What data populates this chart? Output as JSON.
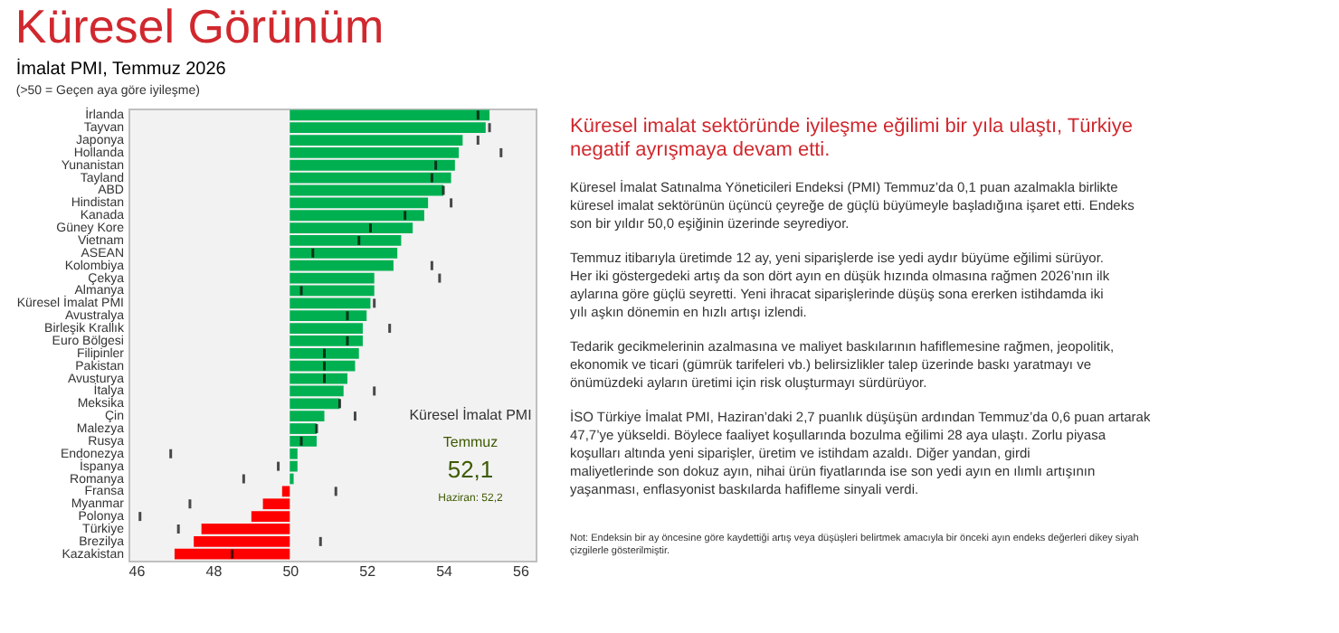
{
  "chart_data": {
    "type": "bar",
    "orientation": "horizontal",
    "title": "İmalat PMI, Temmuz 2026",
    "subtitle": "(>50  = Geçen aya göre iyileşme)",
    "categories": [
      "İrlanda",
      "Tayvan",
      "Japonya",
      "Hollanda",
      "Yunanistan",
      "Tayland",
      "ABD",
      "Hindistan",
      "Kanada",
      "Güney Kore",
      "Vietnam",
      "ASEAN",
      "Kolombiya",
      "Çekya",
      "Almanya",
      "Küresel İmalat PMI",
      "Avustralya",
      "Birleşik Krallık",
      "Euro Bölgesi",
      "Filipinler",
      "Pakistan",
      "Avusturya",
      "İtalya",
      "Meksika",
      "Çin",
      "Malezya",
      "Rusya",
      "Endonezya",
      "İspanya",
      "Romanya",
      "Fransa",
      "Myanmar",
      "Polonya",
      "Türkiye",
      "Brezilya",
      "Kazakistan"
    ],
    "series": [
      {
        "type": "bar",
        "base": [
          50,
          50,
          50,
          50,
          50,
          50,
          50,
          50,
          50,
          50,
          50,
          50,
          50,
          50,
          50,
          50,
          50,
          50,
          50,
          50,
          50,
          50,
          50,
          50,
          50,
          50,
          50,
          50,
          50,
          50,
          50,
          50,
          50,
          50,
          50,
          50
        ],
        "values": [
          5.2,
          5.1,
          4.5,
          4.4,
          4.3,
          4.2,
          4.0,
          3.6,
          3.5,
          3.2,
          2.9,
          2.8,
          2.7,
          2.2,
          2.2,
          2.1,
          2.0,
          1.9,
          1.9,
          1.8,
          1.7,
          1.5,
          1.4,
          1.3,
          0.9,
          0.7,
          0.7,
          0.2,
          0.2,
          0.1,
          -0.2,
          -0.7,
          -1.0,
          -2.3,
          -2.5,
          -3.0
        ],
        "colors": [
          "#00b050",
          "#00b050",
          "#00b050",
          "#00b050",
          "#00b050",
          "#00b050",
          "#00b050",
          "#00b050",
          "#00b050",
          "#00b050",
          "#00b050",
          "#00b050",
          "#00b050",
          "#00b050",
          "#00b050",
          "#00b050",
          "#00b050",
          "#00b050",
          "#00b050",
          "#00b050",
          "#00b050",
          "#00b050",
          "#00b050",
          "#00b050",
          "#00b050",
          "#00b050",
          "#00b050",
          "#00b050",
          "#00b050",
          "#00b050",
          "#ff0000",
          "#ff0000",
          "#ff0000",
          "#ff0000",
          "#ff0000",
          "#ff0000"
        ]
      },
      {
        "type": "scatter",
        "color": "#000000",
        "values": [
          54.9,
          55.2,
          54.9,
          55.5,
          53.8,
          53.7,
          54.0,
          54.2,
          53.0,
          52.1,
          51.8,
          50.6,
          53.7,
          53.9,
          50.3,
          52.2,
          51.5,
          52.6,
          51.5,
          50.9,
          50.9,
          50.9,
          52.2,
          51.3,
          51.7,
          50.7,
          50.3,
          46.9,
          49.7,
          48.8,
          51.2,
          47.4,
          46.1,
          47.1,
          50.8,
          48.5
        ]
      }
    ],
    "xlim": [
      45.8,
      56.4
    ],
    "xticks": [
      46,
      48,
      50,
      52,
      54,
      56
    ],
    "annotations": [
      "Küresel Görünüm",
      "Küresel imalat sektöründe iyileşme eğilimi bir yıla ulaştı, Türkiye negatif ayrışmaya devam etti.",
      "Küresel İmalat Satınalma Yöneticileri Endeksi (PMI) Temmuz’da 0,1 puan azalmakla birlikte küresel imalat sektörünün üçüncü çeyreğe de güçlü büyümeyle başladığına işaret etti. Endeks son bir yıldır 50,0 eşiğinin üzerinde seyrediyor.",
      "Temmuz itibarıyla üretimde 12 ay, yeni siparişlerde ise yedi aydır büyüme eğilimi sürüyor. Her iki göstergedeki artış da son dört ayın en düşük hızında olmasına rağmen 2026’nın ilk aylarına göre güçlü seyretti. Yeni ihracat siparişlerinde düşüş sona ererken istihdamda iki yılı aşkın dönemin en hızlı artışı izlendi.",
      "Tedarik gecikmelerinin azalmasına ve maliyet baskılarının hafiflemesine rağmen, jeopolitik, ekonomik ve ticari (gümrük tarifeleri vb.) belirsizlikler talep üzerinde baskı yaratmayı ve önümüzdeki ayların üretimi için risk oluşturmayı sürdürüyor.",
      "İSO Türkiye İmalat PMI, Haziran’daki 2,7 puanlık düşüşün ardından Temmuz’da 0,6 puan artarak 47,7’ye yükseldi. Böylece faaliyet koşullarında bozulma eğilimi 28 aya ulaştı. Zorlu piyasa koşulları altında yeni siparişler, üretim ve istihdam azaldı. Diğer yandan, girdi maliyetlerinde son dokuz ayın, nihai ürün fiyatlarında ise son yedi ayın en ılımlı artışının yaşanması, enflasyonist baskılarda hafifleme sinyali verdi.",
      "Not: Endeksin bir ay öncesine göre kaydettiği artış veya düşüşleri belirtmek amacıyla bir önceki ayın endeks değerleri dikey siyah çizgilerle gösterilmiştir.",
      "Küresel İmalat PMI",
      "Temmuz",
      "52,1",
      "Haziran: 52,2"
    ]
  }
}
